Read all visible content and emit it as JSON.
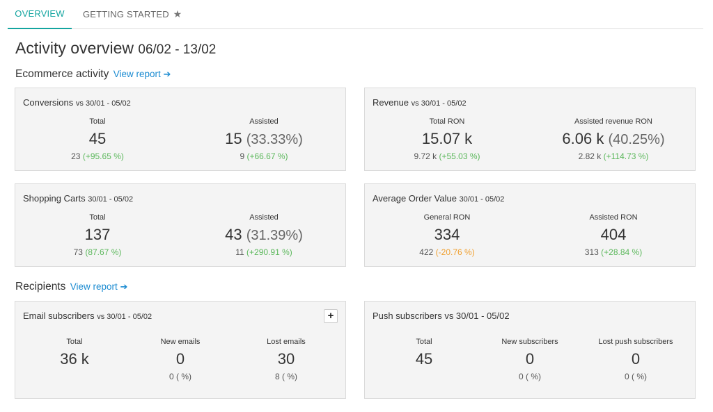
{
  "tabs": [
    {
      "label": "OVERVIEW"
    },
    {
      "label": "GETTING STARTED",
      "icon": "star-icon",
      "glyph": "★"
    }
  ],
  "page": {
    "title": "Activity overview",
    "range": "06/02 - 13/02"
  },
  "ecommerce": {
    "title": "Ecommerce activity",
    "link": "View report",
    "arrow": "➔"
  },
  "recipients": {
    "title": "Recipients",
    "link": "View report",
    "arrow": "➔"
  },
  "colors": {
    "accent": "#14a5a0",
    "link": "#1b8bd1",
    "positive": "#5cb85c",
    "negative": "#f0a030"
  },
  "cards": {
    "conversions": {
      "title": "Conversions",
      "vs": "vs 30/01 - 05/02",
      "total": {
        "label": "Total",
        "value": "45",
        "prev": "23",
        "change": "(+95.65 %)"
      },
      "assisted": {
        "label": "Assisted",
        "value": "15",
        "pct": "(33.33%)",
        "prev": "9",
        "change": "(+66.67 %)"
      }
    },
    "revenue": {
      "title": "Revenue",
      "vs": "vs 30/01 - 05/02",
      "total": {
        "label": "Total RON",
        "value": "15.07 k",
        "prev": "9.72 k",
        "change": "(+55.03 %)"
      },
      "assisted": {
        "label": "Assisted revenue RON",
        "value": "6.06 k",
        "pct": "(40.25%)",
        "prev": "2.82 k",
        "change": "(+114.73 %)"
      }
    },
    "carts": {
      "title": "Shopping Carts",
      "vs": "30/01 - 05/02",
      "total": {
        "label": "Total",
        "value": "137",
        "prev": "73",
        "change": "(87.67 %)"
      },
      "assisted": {
        "label": "Assisted",
        "value": "43",
        "pct": "(31.39%)",
        "prev": "11",
        "change": "(+290.91 %)"
      }
    },
    "aov": {
      "title": "Average Order Value",
      "vs": "30/01 - 05/02",
      "general": {
        "label": "General RON",
        "value": "334",
        "prev": "422",
        "change": "(-20.76 %)"
      },
      "assisted": {
        "label": "Assisted RON",
        "value": "404",
        "prev": "313",
        "change": "(+28.84 %)"
      }
    },
    "email": {
      "title": "Email subscribers",
      "vs": "vs 30/01 - 05/02",
      "plus": "+",
      "total": {
        "label": "Total",
        "value": "36 k"
      },
      "new": {
        "label": "New emails",
        "value": "0",
        "sub": "0 ( %)"
      },
      "lost": {
        "label": "Lost emails",
        "value": "30",
        "sub": "8 ( %)"
      }
    },
    "push": {
      "title": "Push subscribers vs 30/01 - 05/02",
      "total": {
        "label": "Total",
        "value": "45"
      },
      "new": {
        "label": "New subscribers",
        "value": "0",
        "sub": "0 ( %)"
      },
      "lost": {
        "label": "Lost push subscribers",
        "value": "0",
        "sub": "0 ( %)"
      }
    }
  }
}
